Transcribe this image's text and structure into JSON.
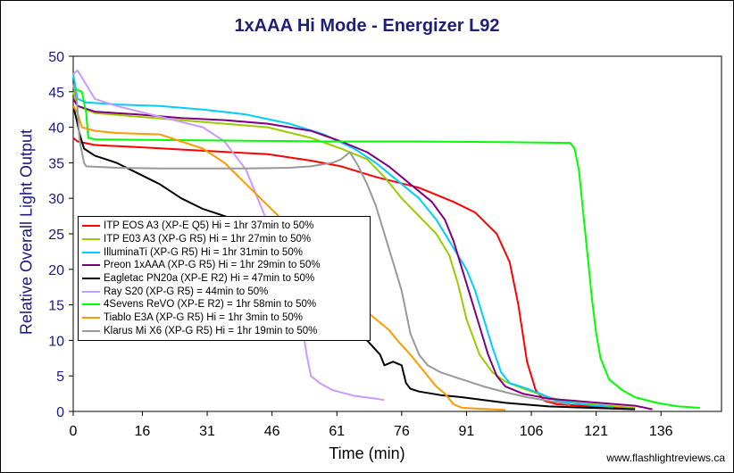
{
  "chart_data": {
    "type": "line",
    "title": "1xAAA Hi Mode - Energizer L92",
    "xlabel": "Time (min)",
    "ylabel": "Relative Overall Light Output",
    "xlim": [
      0,
      150
    ],
    "ylim": [
      0,
      50
    ],
    "xticks": [
      0,
      16,
      31,
      46,
      61,
      76,
      91,
      106,
      121,
      136
    ],
    "yticks": [
      0,
      5,
      10,
      15,
      20,
      25,
      30,
      35,
      40,
      45,
      50
    ],
    "grid": false,
    "legend_position": "lower-left",
    "series": [
      {
        "name": "ITP EOS A3 (XP-E Q5) Hi = 1hr 37min to 50%",
        "color": "#ff0000",
        "points": [
          [
            0,
            38.5
          ],
          [
            1,
            38
          ],
          [
            5,
            37.5
          ],
          [
            15,
            37.2
          ],
          [
            30,
            36.7
          ],
          [
            45,
            36.2
          ],
          [
            55,
            35.3
          ],
          [
            62,
            34.5
          ],
          [
            70,
            33
          ],
          [
            80,
            31.5
          ],
          [
            88,
            29.5
          ],
          [
            93,
            28
          ],
          [
            98,
            25
          ],
          [
            101,
            21
          ],
          [
            103,
            15
          ],
          [
            105,
            7
          ],
          [
            107,
            3
          ],
          [
            109,
            1.5
          ],
          [
            112,
            1
          ],
          [
            120,
            0.7
          ],
          [
            130,
            0.5
          ]
        ]
      },
      {
        "name": "ITP E03 A3 (XP-G R5) Hi =  1hr 27min to 50%",
        "color": "#99cc00",
        "points": [
          [
            0,
            45
          ],
          [
            1,
            43
          ],
          [
            5,
            42
          ],
          [
            15,
            41.5
          ],
          [
            25,
            41
          ],
          [
            35,
            40.5
          ],
          [
            45,
            40
          ],
          [
            55,
            38.5
          ],
          [
            62,
            37
          ],
          [
            68,
            35.5
          ],
          [
            72,
            33
          ],
          [
            76,
            30
          ],
          [
            80,
            27.5
          ],
          [
            84,
            25
          ],
          [
            87,
            22
          ],
          [
            89,
            18
          ],
          [
            91,
            13
          ],
          [
            94,
            8
          ],
          [
            97,
            5.5
          ],
          [
            100,
            4.2
          ],
          [
            105,
            3
          ],
          [
            110,
            2
          ],
          [
            115,
            1.3
          ],
          [
            120,
            1
          ],
          [
            130,
            0.5
          ]
        ]
      },
      {
        "name": "IlluminaTi (XP-G R5) Hi = 1hr 31min to 50%",
        "color": "#00ccff",
        "points": [
          [
            0,
            47.5
          ],
          [
            1,
            44
          ],
          [
            3,
            43.5
          ],
          [
            10,
            43.2
          ],
          [
            20,
            43
          ],
          [
            30,
            42.5
          ],
          [
            40,
            41.8
          ],
          [
            50,
            40.5
          ],
          [
            58,
            39
          ],
          [
            65,
            37
          ],
          [
            70,
            35
          ],
          [
            75,
            32.5
          ],
          [
            80,
            30
          ],
          [
            84,
            27
          ],
          [
            88,
            23
          ],
          [
            91,
            20
          ],
          [
            93,
            17
          ],
          [
            95,
            13
          ],
          [
            97,
            9
          ],
          [
            99,
            5.5
          ],
          [
            101,
            4
          ],
          [
            105,
            3.2
          ],
          [
            108,
            2.5
          ],
          [
            112,
            1.5
          ],
          [
            118,
            1
          ],
          [
            125,
            0.6
          ]
        ]
      },
      {
        "name": "Preon 1xAAA (XP-G R5) Hi = 1hr 29min to 50%",
        "color": "#800080",
        "points": [
          [
            0,
            44
          ],
          [
            1,
            43
          ],
          [
            5,
            42.2
          ],
          [
            15,
            41.8
          ],
          [
            25,
            41.3
          ],
          [
            35,
            41
          ],
          [
            45,
            40.5
          ],
          [
            55,
            39.5
          ],
          [
            62,
            38
          ],
          [
            68,
            36.5
          ],
          [
            73,
            34.5
          ],
          [
            78,
            32
          ],
          [
            83,
            29.5
          ],
          [
            86,
            27
          ],
          [
            88,
            24
          ],
          [
            90,
            20
          ],
          [
            92,
            16
          ],
          [
            94,
            12
          ],
          [
            96,
            8
          ],
          [
            98,
            5
          ],
          [
            100,
            3.5
          ],
          [
            104,
            2.5
          ],
          [
            110,
            1.8
          ],
          [
            120,
            1.3
          ],
          [
            130,
            0.8
          ],
          [
            134,
            0.3
          ]
        ]
      },
      {
        "name": "Eagletac PN20a (XP-E R2) Hi = 47min to 50%",
        "color": "#000000",
        "points": [
          [
            0,
            43
          ],
          [
            0.8,
            41
          ],
          [
            1.5,
            39
          ],
          [
            2.5,
            37
          ],
          [
            5,
            36
          ],
          [
            10,
            35
          ],
          [
            15,
            33.5
          ],
          [
            20,
            32
          ],
          [
            25,
            30
          ],
          [
            30,
            28.5
          ],
          [
            35,
            27.5
          ],
          [
            40,
            26.5
          ],
          [
            45,
            23
          ],
          [
            50,
            19
          ],
          [
            55,
            15
          ],
          [
            60,
            12.5
          ],
          [
            64,
            11
          ],
          [
            68,
            10
          ],
          [
            71,
            8
          ],
          [
            72,
            6.5
          ],
          [
            74,
            7
          ],
          [
            76,
            6.5
          ],
          [
            77,
            4
          ],
          [
            78,
            3.2
          ],
          [
            80,
            2.8
          ],
          [
            85,
            2.3
          ],
          [
            90,
            2
          ],
          [
            95,
            1.6
          ],
          [
            100,
            1.2
          ],
          [
            110,
            0.7
          ],
          [
            120,
            0.5
          ],
          [
            130,
            0.3
          ]
        ]
      },
      {
        "name": "Ray S20 (XP-G R5) = 44min to 50%",
        "color": "#cc99ff",
        "points": [
          [
            0,
            47.5
          ],
          [
            1,
            48
          ],
          [
            2,
            47
          ],
          [
            5,
            44
          ],
          [
            10,
            43
          ],
          [
            20,
            41.5
          ],
          [
            30,
            40
          ],
          [
            35,
            38
          ],
          [
            40,
            34
          ],
          [
            44,
            28
          ],
          [
            48,
            22
          ],
          [
            51,
            17
          ],
          [
            53,
            12
          ],
          [
            54,
            8
          ],
          [
            55,
            5
          ],
          [
            57,
            4
          ],
          [
            60,
            3
          ],
          [
            65,
            2.2
          ],
          [
            70,
            1.8
          ],
          [
            72,
            1.6
          ]
        ]
      },
      {
        "name": "4Sevens ReVO (XP-E R2) = 1hr 58min to 50%",
        "color": "#00ff00",
        "points": [
          [
            0,
            45.5
          ],
          [
            2,
            45
          ],
          [
            3,
            42
          ],
          [
            3.5,
            38.5
          ],
          [
            5,
            38.3
          ],
          [
            20,
            38.2
          ],
          [
            40,
            38.1
          ],
          [
            60,
            38
          ],
          [
            80,
            38
          ],
          [
            100,
            37.9
          ],
          [
            115,
            37.8
          ],
          [
            116,
            37
          ],
          [
            117,
            34
          ],
          [
            118,
            28
          ],
          [
            119,
            22
          ],
          [
            120,
            16
          ],
          [
            121,
            11
          ],
          [
            122,
            7.5
          ],
          [
            124,
            4.5
          ],
          [
            127,
            3
          ],
          [
            130,
            2
          ],
          [
            135,
            1.2
          ],
          [
            140,
            0.7
          ],
          [
            145,
            0.5
          ]
        ]
      },
      {
        "name": "Tiablo E3A (XP-G R5) Hi = 1hr 3min to 50%",
        "color": "#ff9900",
        "points": [
          [
            0,
            43
          ],
          [
            1,
            42
          ],
          [
            2,
            40
          ],
          [
            5,
            39.5
          ],
          [
            10,
            39.2
          ],
          [
            20,
            39
          ],
          [
            25,
            38
          ],
          [
            30,
            37
          ],
          [
            35,
            35
          ],
          [
            40,
            32
          ],
          [
            45,
            29
          ],
          [
            50,
            26
          ],
          [
            55,
            22
          ],
          [
            60,
            19
          ],
          [
            63,
            17
          ],
          [
            66,
            15
          ],
          [
            70,
            13
          ],
          [
            73,
            11.5
          ],
          [
            75,
            10
          ],
          [
            78,
            8
          ],
          [
            80,
            6.5
          ],
          [
            82,
            5
          ],
          [
            84,
            3.5
          ],
          [
            86,
            2.5
          ],
          [
            88,
            1
          ],
          [
            90,
            0.5
          ],
          [
            100,
            0.2
          ]
        ]
      },
      {
        "name": "Klarus Mi X6 (XP-G R5) Hi = 1hr 19min to 50%",
        "color": "#999999",
        "points": [
          [
            0,
            46
          ],
          [
            0.8,
            44
          ],
          [
            1.5,
            38
          ],
          [
            2.5,
            35
          ],
          [
            3,
            34.5
          ],
          [
            10,
            34.3
          ],
          [
            20,
            34.2
          ],
          [
            30,
            34.2
          ],
          [
            40,
            34.2
          ],
          [
            50,
            34.3
          ],
          [
            55,
            34.5
          ],
          [
            60,
            35
          ],
          [
            62,
            35.5
          ],
          [
            64,
            36.5
          ],
          [
            66,
            34.5
          ],
          [
            68,
            32
          ],
          [
            70,
            29
          ],
          [
            72,
            25
          ],
          [
            74,
            21
          ],
          [
            76,
            17
          ],
          [
            77,
            14
          ],
          [
            78,
            11
          ],
          [
            79,
            9.5
          ],
          [
            80,
            8
          ],
          [
            82,
            6.5
          ],
          [
            85,
            5.5
          ],
          [
            90,
            4.5
          ],
          [
            95,
            3.5
          ],
          [
            100,
            2.7
          ],
          [
            105,
            2
          ],
          [
            110,
            1.5
          ],
          [
            115,
            1
          ]
        ]
      }
    ]
  },
  "watermark": "www.flashlightreviews.ca"
}
